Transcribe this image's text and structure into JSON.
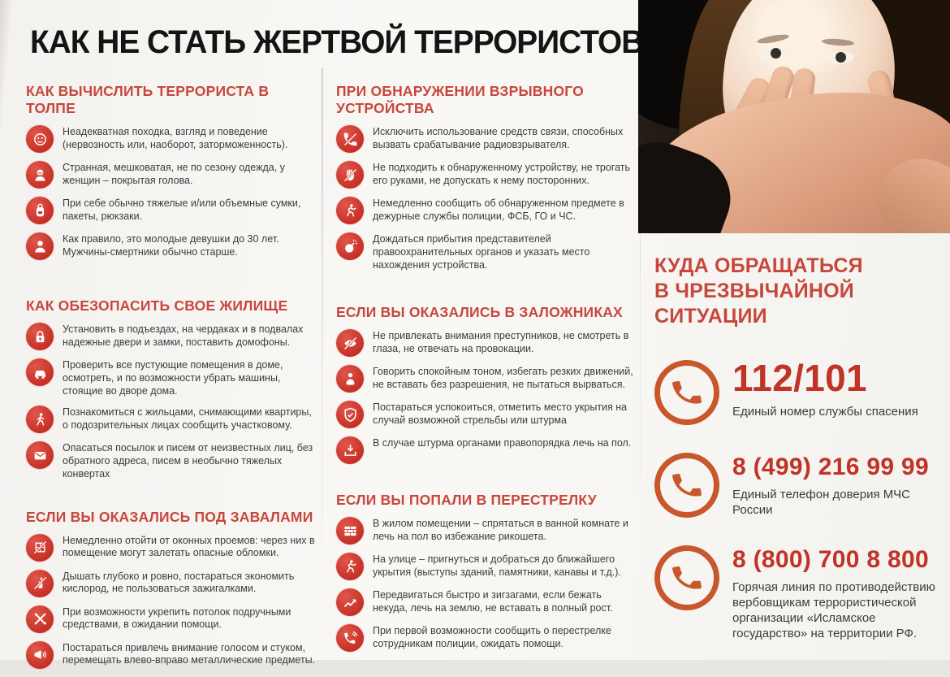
{
  "page": {
    "title": "КАК НЕ СТАТЬ ЖЕРТВОЙ ТЕРРОРИСТОВ"
  },
  "colors": {
    "section_title_red": "#c7473c",
    "icon_circle_red": "#c62f26",
    "phone_ring_orange": "#c8582c",
    "phone_number_red": "#c13327",
    "body_text": "#3c3c3c",
    "title_black": "#141414",
    "background": "#faf8f5"
  },
  "columns": [
    {
      "id": "left",
      "sections": [
        {
          "id": "spot-terrorist",
          "title": "КАК ВЫЧИСЛИТЬ ТЕРРОРИСТА В ТОЛПЕ",
          "items": [
            {
              "icon": "suspicious-face",
              "text": "Неадекватная походка, взгляд и поведение (нервозность или, наоборот, заторможенность)."
            },
            {
              "icon": "covered-head-person",
              "text": "Странная, мешковатая, не по сезону одежда, у женщин – покрытая голова."
            },
            {
              "icon": "heavy-bags",
              "text": "При себе обычно тяжелые и/или объемные сумки, пакеты, рюкзаки."
            },
            {
              "icon": "young-person",
              "text": "Как правило, это молодые девушки до 30 лет. Мужчины-смертники обычно старше."
            }
          ]
        },
        {
          "id": "secure-home",
          "title": "КАК ОБЕЗОПАСИТЬ СВОЕ ЖИЛИЩЕ",
          "items": [
            {
              "icon": "lock",
              "text": "Установить в подъездах, на чердаках и в подвалах надежные двери и замки, поставить домофоны."
            },
            {
              "icon": "car",
              "text": "Проверить все пустующие помещения в доме, осмотреть, и по возможности убрать машины, стоящие во дворе дома."
            },
            {
              "icon": "neighbor-walking",
              "text": "Познакомиться с жильцами, снимающими квартиры, о подозрительных лицах сообщить участковому."
            },
            {
              "icon": "suspicious-mail",
              "text": "Опасаться посылок и писем от неизвестных лиц, без обратного адреса, писем в необычно тяжелых конвертах"
            }
          ]
        },
        {
          "id": "under-rubble",
          "title": "ЕСЛИ ВЫ ОКАЗАЛИСЬ ПОД ЗАВАЛАМИ",
          "items": [
            {
              "icon": "window-crossed",
              "text": "Немедленно отойти от оконных проемов: через них в помещение могут залетать опасные обломки."
            },
            {
              "icon": "lighter-crossed",
              "text": "Дышать глубоко и ровно, постараться экономить кислород, не пользоваться зажигалками."
            },
            {
              "icon": "crossed-tools",
              "text": "При возможности укрепить потолок подручными средствами, в ожидании помощи."
            },
            {
              "icon": "megaphone",
              "text": "Постараться привлечь внимание голосом и стуком, перемещать влево-вправо металлические предметы."
            }
          ]
        }
      ]
    },
    {
      "id": "middle",
      "sections": [
        {
          "id": "explosive-device",
          "title": "ПРИ ОБНАРУЖЕНИИ ВЗРЫВНОГО УСТРОЙСТВА",
          "items": [
            {
              "icon": "phone-crossed",
              "text": "Исключить использование средств связи, способных вызвать срабатывание радиовзрывателя."
            },
            {
              "icon": "touch-crossed",
              "text": "Не подходить к обнаруженному устройству, не трогать его руками, не допускать к нему посторонних."
            },
            {
              "icon": "runner-report",
              "text": "Немедленно сообщить об обнаруженном предмете в дежурные службы полиции, ФСБ, ГО и ЧС."
            },
            {
              "icon": "bomb",
              "text": "Дождаться прибытия представителей правоохранительных органов и указать место нахождения устройства."
            }
          ]
        },
        {
          "id": "hostage",
          "title": "ЕСЛИ ВЫ ОКАЗАЛИСЬ В ЗАЛОЖНИКАХ",
          "items": [
            {
              "icon": "eye-crossed",
              "text": "Не привлекать внимания преступников, не смотреть в глаза, не отвечать на провокации."
            },
            {
              "icon": "calm-person",
              "text": "Говорить спокойным тоном, избегать резких движений, не вставать без разрешения, не пытаться вырваться."
            },
            {
              "icon": "shield-check",
              "text": "Постараться успокоиться, отметить место укрытия на случай возможной стрельбы или штурма"
            },
            {
              "icon": "lie-on-floor",
              "text": "В случае штурма органами правопорядка лечь на пол."
            }
          ]
        },
        {
          "id": "crossfire",
          "title": "ЕСЛИ ВЫ ПОПАЛИ В ПЕРЕСТРЕЛКУ",
          "items": [
            {
              "icon": "brick-wall",
              "text": "В жилом помещении – спрятаться в ванной комнате и лечь на пол во избежание рикошета."
            },
            {
              "icon": "runner",
              "text": "На улице – пригнуться и добраться до ближайшего укрытия (выступы зданий, памятники, канавы и т.д.)."
            },
            {
              "icon": "zigzag-arrow",
              "text": "Передвигаться быстро и зигзагами, если бежать некуда, лечь на землю, не вставать в полный рост."
            },
            {
              "icon": "phone-call",
              "text": "При первой возможности сообщить о перестрелке сотрудникам полиции, ожидать помощи."
            }
          ]
        }
      ]
    }
  ],
  "emergency": {
    "title_lines": [
      "КУДА ОБРАЩАТЬСЯ",
      "В ЧРЕЗВЫЧАЙНОЙ СИТУАЦИИ"
    ],
    "contacts": [
      {
        "icon": "phone-handset",
        "number": "112/101",
        "label": "Единый номер службы спасения"
      },
      {
        "icon": "phone-handset",
        "number": "8 (499) 216 99 99",
        "label": "Единый телефон доверия МЧС России"
      },
      {
        "icon": "phone-handset",
        "number": "8 (800) 700 8 800",
        "label": "Горячая линия по противодействию вербовщикам террористической организации «Исламское государство» на территории РФ."
      }
    ]
  }
}
